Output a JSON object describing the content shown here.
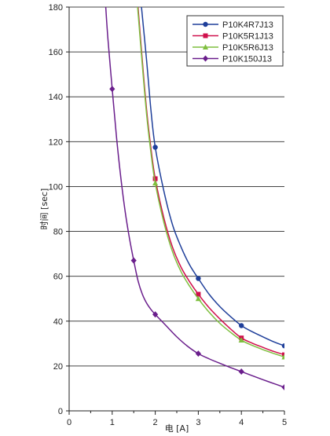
{
  "chart_data": {
    "type": "line",
    "title": "",
    "xlabel": "电 [A]",
    "ylabel": "时间 [sec]",
    "xlim": [
      0,
      5
    ],
    "ylim": [
      0,
      180
    ],
    "xticks": [
      0,
      1,
      2,
      3,
      4,
      5
    ],
    "yticks": [
      0,
      20,
      40,
      60,
      80,
      100,
      120,
      140,
      160,
      180
    ],
    "grid": "horizontal",
    "legend_position": "top-right",
    "series": [
      {
        "name": "P10K4R7J13",
        "color": "#1f3f9a",
        "marker": "circle",
        "points": [
          [
            2,
            117.5
          ],
          [
            3,
            59
          ],
          [
            4,
            38
          ],
          [
            5,
            29
          ]
        ],
        "curve": [
          [
            1.68,
            180
          ],
          [
            1.8,
            156
          ],
          [
            1.9,
            134
          ],
          [
            2,
            117.5
          ],
          [
            2.2,
            98
          ],
          [
            2.4,
            83
          ],
          [
            2.6,
            73
          ],
          [
            2.8,
            65
          ],
          [
            3,
            59
          ],
          [
            3.25,
            52
          ],
          [
            3.5,
            46.5
          ],
          [
            3.75,
            42
          ],
          [
            4,
            38
          ],
          [
            4.25,
            35.3
          ],
          [
            4.5,
            33
          ],
          [
            4.75,
            30.8
          ],
          [
            5,
            29
          ]
        ]
      },
      {
        "name": "P10K5R1J13",
        "color": "#d0104c",
        "marker": "square",
        "points": [
          [
            2,
            103.5
          ],
          [
            3,
            52
          ],
          [
            4,
            32.5
          ],
          [
            5,
            25
          ]
        ],
        "curve": [
          [
            1.6,
            180
          ],
          [
            1.7,
            156
          ],
          [
            1.8,
            134
          ],
          [
            1.9,
            117
          ],
          [
            2,
            103.5
          ],
          [
            2.2,
            86
          ],
          [
            2.4,
            73
          ],
          [
            2.6,
            64
          ],
          [
            2.8,
            57.5
          ],
          [
            3,
            52
          ],
          [
            3.25,
            46
          ],
          [
            3.5,
            41
          ],
          [
            3.75,
            36.5
          ],
          [
            4,
            32.5
          ],
          [
            4.25,
            30.2
          ],
          [
            4.5,
            28.3
          ],
          [
            4.75,
            26.5
          ],
          [
            5,
            25
          ]
        ]
      },
      {
        "name": "P10K5R6J13",
        "color": "#7fbf3f",
        "marker": "triangle",
        "points": [
          [
            2,
            101.5
          ],
          [
            3,
            50
          ],
          [
            4,
            31.5
          ],
          [
            5,
            24
          ]
        ],
        "curve": [
          [
            1.59,
            180
          ],
          [
            1.7,
            154
          ],
          [
            1.8,
            132
          ],
          [
            1.9,
            115
          ],
          [
            2,
            101.5
          ],
          [
            2.2,
            84
          ],
          [
            2.4,
            71
          ],
          [
            2.6,
            62
          ],
          [
            2.8,
            55.5
          ],
          [
            3,
            50
          ],
          [
            3.25,
            44
          ],
          [
            3.5,
            39
          ],
          [
            3.75,
            35
          ],
          [
            4,
            31.5
          ],
          [
            4.25,
            29.2
          ],
          [
            4.5,
            27.3
          ],
          [
            4.75,
            25.6
          ],
          [
            5,
            24
          ]
        ]
      },
      {
        "name": "P10K150J13",
        "color": "#6a1e8c",
        "marker": "diamond",
        "points": [
          [
            1,
            143.5
          ],
          [
            1.5,
            67
          ],
          [
            2,
            43
          ],
          [
            3,
            25.5
          ],
          [
            4,
            17.5
          ],
          [
            5,
            10.5
          ]
        ],
        "curve": [
          [
            0.85,
            180
          ],
          [
            0.9,
            166
          ],
          [
            1,
            143.5
          ],
          [
            1.1,
            122
          ],
          [
            1.2,
            104
          ],
          [
            1.3,
            89
          ],
          [
            1.4,
            77
          ],
          [
            1.5,
            67
          ],
          [
            1.6,
            58
          ],
          [
            1.7,
            52
          ],
          [
            1.8,
            48
          ],
          [
            1.9,
            45.2
          ],
          [
            2,
            43
          ],
          [
            2.25,
            38
          ],
          [
            2.5,
            33
          ],
          [
            2.75,
            28.8
          ],
          [
            3,
            25.5
          ],
          [
            3.25,
            23.2
          ],
          [
            3.5,
            21.2
          ],
          [
            3.75,
            19.3
          ],
          [
            4,
            17.5
          ],
          [
            4.25,
            15.7
          ],
          [
            4.5,
            13.9
          ],
          [
            4.75,
            12.2
          ],
          [
            5,
            10.5
          ]
        ]
      }
    ]
  }
}
